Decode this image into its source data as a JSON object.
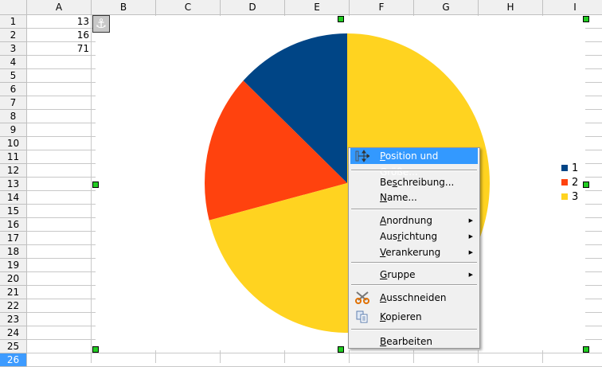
{
  "sheet": {
    "columns": [
      "A",
      "B",
      "C",
      "D",
      "E",
      "F",
      "G",
      "H",
      "I"
    ],
    "rows": [
      "1",
      "2",
      "3",
      "4",
      "5",
      "6",
      "7",
      "8",
      "9",
      "10",
      "11",
      "12",
      "13",
      "14",
      "15",
      "16",
      "17",
      "18",
      "19",
      "20",
      "21",
      "22",
      "23",
      "24",
      "25",
      "26"
    ],
    "current_row": "26",
    "cells": {
      "A1": "13",
      "A2": "16",
      "A3": "71"
    }
  },
  "anchor_icon": "anchor-icon",
  "chart_data": {
    "type": "pie",
    "categories": [
      "1",
      "2",
      "3"
    ],
    "values": [
      13,
      16,
      71
    ],
    "colors": [
      "#004586",
      "#ff420e",
      "#ffd320"
    ],
    "legend": [
      "1",
      "2",
      "3"
    ],
    "legend_placement": "right",
    "direction": "counterclockwise-from-top"
  },
  "context_menu": {
    "items": [
      {
        "label": "Position und Größe...",
        "mnemonic": 0,
        "icon": "position-size-icon",
        "highlighted": true
      },
      {
        "separator": true
      },
      {
        "label": "Beschreibung...",
        "mnemonic": 2
      },
      {
        "label": "Name...",
        "mnemonic": 0
      },
      {
        "separator": true
      },
      {
        "label": "Anordnung",
        "mnemonic": 0,
        "submenu": true
      },
      {
        "label": "Ausrichtung",
        "mnemonic": 3,
        "submenu": true
      },
      {
        "label": "Verankerung",
        "mnemonic": 0,
        "submenu": true
      },
      {
        "separator": true
      },
      {
        "label": "Gruppe",
        "mnemonic": 0,
        "submenu": true
      },
      {
        "separator": true
      },
      {
        "label": "Ausschneiden",
        "mnemonic": 0,
        "icon": "scissors-icon"
      },
      {
        "label": "Kopieren",
        "mnemonic": 0,
        "icon": "copy-icon"
      },
      {
        "separator": true
      },
      {
        "label": "Bearbeiten",
        "mnemonic": 0
      }
    ]
  }
}
